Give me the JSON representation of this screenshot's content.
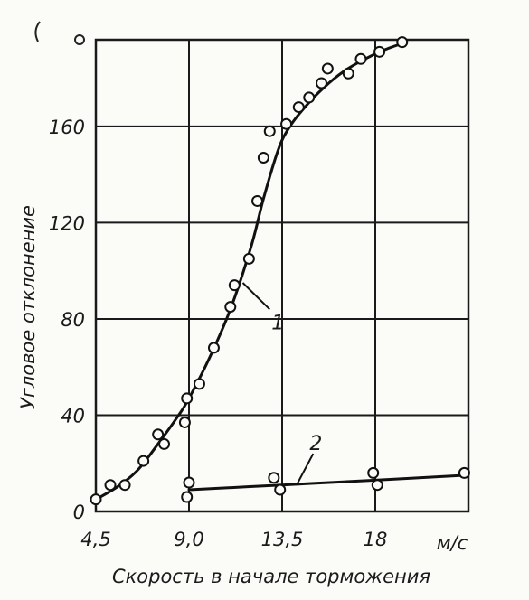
{
  "chart_data": {
    "type": "scatter",
    "xlabel": "Скорость в начале торможения",
    "ylabel": "Угловое отклонение",
    "x_unit": "м/с",
    "xlim": [
      4.5,
      22.5
    ],
    "ylim": [
      0,
      196
    ],
    "x_ticks": [
      {
        "value": 4.5,
        "label": "4,5"
      },
      {
        "value": 9.0,
        "label": "9,0"
      },
      {
        "value": 13.5,
        "label": "13,5"
      },
      {
        "value": 18,
        "label": "18"
      }
    ],
    "y_ticks": [
      {
        "value": 0,
        "label": "0"
      },
      {
        "value": 40,
        "label": "40"
      },
      {
        "value": 80,
        "label": "80"
      },
      {
        "value": 120,
        "label": "120"
      },
      {
        "value": 160,
        "label": "160"
      }
    ],
    "grid": true,
    "series": [
      {
        "name": "1",
        "points": [
          [
            4.5,
            5
          ],
          [
            5.2,
            11
          ],
          [
            5.9,
            11
          ],
          [
            6.8,
            21
          ],
          [
            7.5,
            32
          ],
          [
            7.8,
            28
          ],
          [
            8.8,
            37
          ],
          [
            8.9,
            47
          ],
          [
            9.5,
            53
          ],
          [
            10.2,
            68
          ],
          [
            11.0,
            85
          ],
          [
            11.2,
            94
          ],
          [
            11.9,
            105
          ],
          [
            12.3,
            129
          ],
          [
            12.6,
            147
          ],
          [
            12.9,
            158
          ],
          [
            13.7,
            161
          ],
          [
            14.3,
            168
          ],
          [
            14.8,
            172
          ],
          [
            15.4,
            178
          ],
          [
            15.7,
            184
          ],
          [
            16.7,
            182
          ],
          [
            17.3,
            188
          ],
          [
            18.2,
            191
          ],
          [
            19.3,
            195
          ]
        ],
        "curve": [
          [
            4.5,
            5
          ],
          [
            5.5,
            10
          ],
          [
            6.5,
            17
          ],
          [
            7.5,
            28
          ],
          [
            8.5,
            40
          ],
          [
            9.0,
            47
          ],
          [
            10.0,
            64
          ],
          [
            11.0,
            84
          ],
          [
            12.0,
            110
          ],
          [
            12.6,
            130
          ],
          [
            13.3,
            150
          ],
          [
            13.8,
            159
          ],
          [
            14.5,
            167
          ],
          [
            15.5,
            176
          ],
          [
            16.5,
            183
          ],
          [
            17.5,
            188
          ],
          [
            18.5,
            192
          ],
          [
            19.5,
            195
          ]
        ]
      },
      {
        "name": "2",
        "points": [
          [
            8.9,
            6
          ],
          [
            9.0,
            12
          ],
          [
            13.1,
            14
          ],
          [
            13.4,
            9
          ],
          [
            17.9,
            16
          ],
          [
            18.1,
            11
          ],
          [
            22.3,
            16
          ]
        ],
        "curve": [
          [
            9.0,
            9
          ],
          [
            13.5,
            11
          ],
          [
            18,
            13
          ],
          [
            22.3,
            15
          ]
        ]
      }
    ]
  }
}
